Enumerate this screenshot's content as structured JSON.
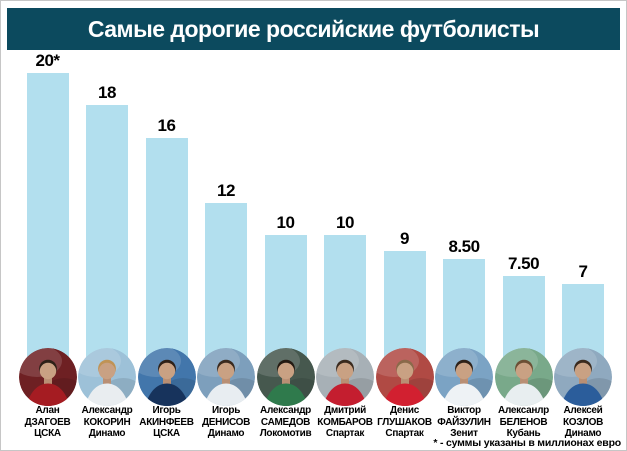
{
  "title": "Самые дорогие российские футболисты",
  "footnote": "* - суммы указаны в миллионах евро",
  "colors": {
    "header_bg": "#0c4a5e",
    "header_text": "#ffffff",
    "bar": "#b2dfee",
    "text": "#000000",
    "page_border": "#c6c6c6"
  },
  "chart_data": {
    "type": "bar",
    "title": "Самые дорогие российские футболисты",
    "unit": "миллионы евро",
    "categories": [
      "Алан Дзагоев (ЦСКА)",
      "Александр Кокорин (Динамо)",
      "Игорь Акинфеев (ЦСКА)",
      "Игорь Денисов (Динамо)",
      "Александр Самедов (Локомотив)",
      "Дмитрий Комбаров (Спартак)",
      "Денис Глушаков (Спартак)",
      "Виктор Файзулин (Зенит)",
      "Алексанлр Беленов (Кубань)",
      "Алексей Козлов (Динамо)"
    ],
    "values": [
      20,
      18,
      16,
      12,
      10,
      10,
      9,
      8.5,
      7.5,
      7
    ],
    "value_labels": [
      "20*",
      "18",
      "16",
      "12",
      "10",
      "10",
      "9",
      "8.50",
      "7.50",
      "7"
    ],
    "ylim": [
      0,
      20
    ],
    "grid": false,
    "legend": false,
    "footnote": "* - суммы указаны в миллионах евро"
  },
  "players": [
    {
      "first": "Алан",
      "last": "ДЗАГОЕВ",
      "club": "ЦСКА",
      "value": 20,
      "value_label": "20*",
      "avatar": {
        "bg": "#6e2023",
        "jersey": "#a51c22",
        "hair": "#2e2118"
      }
    },
    {
      "first": "Александр",
      "last": "КОКОРИН",
      "club": "Динамо",
      "value": 18,
      "value_label": "18",
      "avatar": {
        "bg": "#9dc1d8",
        "jersey": "#e9edf0",
        "hair": "#c09355"
      }
    },
    {
      "first": "Игорь",
      "last": "АКИНФЕЕВ",
      "club": "ЦСКА",
      "value": 16,
      "value_label": "16",
      "avatar": {
        "bg": "#4276ab",
        "jersey": "#17335c",
        "hair": "#2e2118"
      }
    },
    {
      "first": "Игорь",
      "last": "ДЕНИСОВ",
      "club": "Динамо",
      "value": 12,
      "value_label": "12",
      "avatar": {
        "bg": "#7d9fbc",
        "jersey": "#e8edf1",
        "hair": "#3a2a1e"
      }
    },
    {
      "first": "Александр",
      "last": "САМЕДОВ",
      "club": "Локомотив",
      "value": 10,
      "value_label": "10",
      "avatar": {
        "bg": "#46584e",
        "jersey": "#2f7a4c",
        "hair": "#241a12"
      }
    },
    {
      "first": "Дмитрий",
      "last": "КОМБАРОВ",
      "club": "Спартак",
      "value": 10,
      "value_label": "10",
      "avatar": {
        "bg": "#a7b0b6",
        "jersey": "#c41e2f",
        "hair": "#3a2a1e"
      }
    },
    {
      "first": "Денис",
      "last": "ГЛУШАКОВ",
      "club": "Спартак",
      "value": 9,
      "value_label": "9",
      "avatar": {
        "bg": "#b04a44",
        "jersey": "#d22030",
        "hair": "#8a6a4a"
      }
    },
    {
      "first": "Виктор",
      "last": "ФАЙЗУЛИН",
      "club": "Зенит",
      "value": 8.5,
      "value_label": "8.50",
      "avatar": {
        "bg": "#7ba3c4",
        "jersey": "#eef2f5",
        "hair": "#2e2118"
      }
    },
    {
      "first": "Алексанлр",
      "last": "БЕЛЕНОВ",
      "club": "Кубань",
      "value": 7.5,
      "value_label": "7.50",
      "avatar": {
        "bg": "#79a98a",
        "jersey": "#e8eef0",
        "hair": "#6b4f35"
      }
    },
    {
      "first": "Алексей",
      "last": "КОЗЛОВ",
      "club": "Динамо",
      "value": 7,
      "value_label": "7",
      "avatar": {
        "bg": "#8fa9bf",
        "jersey": "#2b5d9b",
        "hair": "#3a2a1e"
      }
    }
  ]
}
